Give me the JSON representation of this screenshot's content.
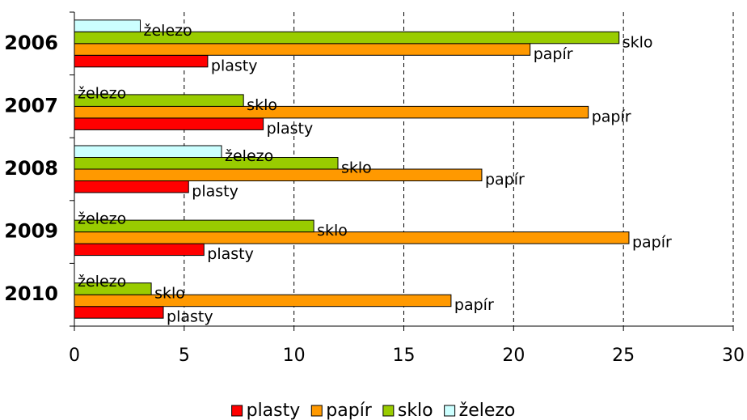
{
  "chart_data": {
    "type": "bar",
    "orientation": "horizontal",
    "categories": [
      "2006",
      "2007",
      "2008",
      "2009",
      "2010"
    ],
    "series": [
      {
        "name": "plasty",
        "color": "#ff0000",
        "values": [
          6.07,
          8.6,
          5.2,
          5.9,
          4.05
        ]
      },
      {
        "name": "papír",
        "color": "#ff9900",
        "values": [
          20.75,
          23.4,
          18.55,
          25.25,
          17.15
        ]
      },
      {
        "name": "sklo",
        "color": "#99cc00",
        "values": [
          24.8,
          7.7,
          12.0,
          10.9,
          3.5
        ]
      },
      {
        "name": "železo",
        "color": "#ccffff",
        "values": [
          3.0,
          0,
          6.7,
          0,
          0
        ]
      }
    ],
    "xlim": [
      0,
      30
    ],
    "xticks": [
      0,
      5,
      10,
      15,
      20,
      25,
      30
    ],
    "grid": true,
    "legend": "bottom"
  }
}
